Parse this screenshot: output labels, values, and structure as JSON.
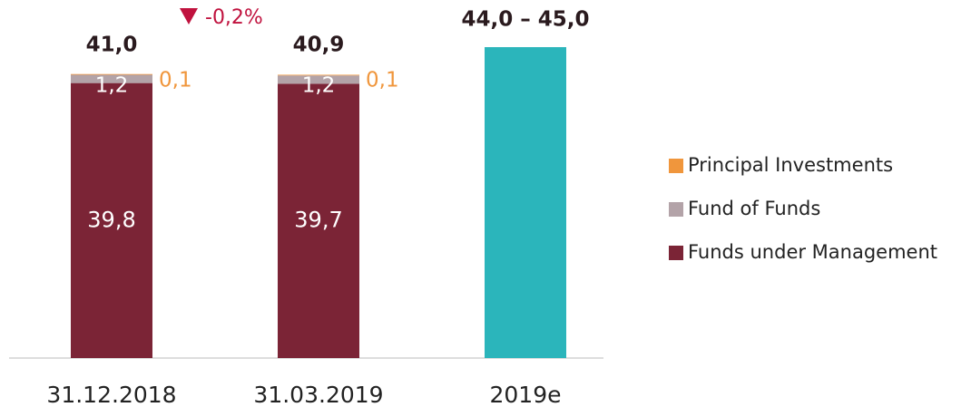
{
  "chart_data": {
    "type": "stacked_bar",
    "categories": [
      "31.12.2018",
      "31.03.2019",
      "2019e"
    ],
    "series": [
      {
        "name": "Funds under Management",
        "color": "#7b2436",
        "values": [
          39.8,
          39.7,
          null
        ],
        "value_labels": [
          "39,8",
          "39,7",
          null
        ]
      },
      {
        "name": "Fund of Funds",
        "color": "#b3a3a8",
        "values": [
          1.2,
          1.2,
          null
        ],
        "value_labels": [
          "1,2",
          "1,2",
          null
        ]
      },
      {
        "name": "Principal Investments",
        "color": "#f0963c",
        "values": [
          0.1,
          0.1,
          null
        ],
        "value_labels": [
          "0,1",
          "0,1",
          null
        ]
      }
    ],
    "totals": [
      41.0,
      40.9,
      null
    ],
    "total_labels": [
      "41,0",
      "40,9",
      null
    ],
    "forecast": {
      "color": "#2bb5bb",
      "category": 2,
      "values": [
        44.0,
        45.0
      ],
      "label": "44,0 – 45,0"
    },
    "annotation": "-0,2%",
    "annotation_color": "#c0123e",
    "ylim": [
      0,
      45
    ],
    "legend": "right"
  }
}
